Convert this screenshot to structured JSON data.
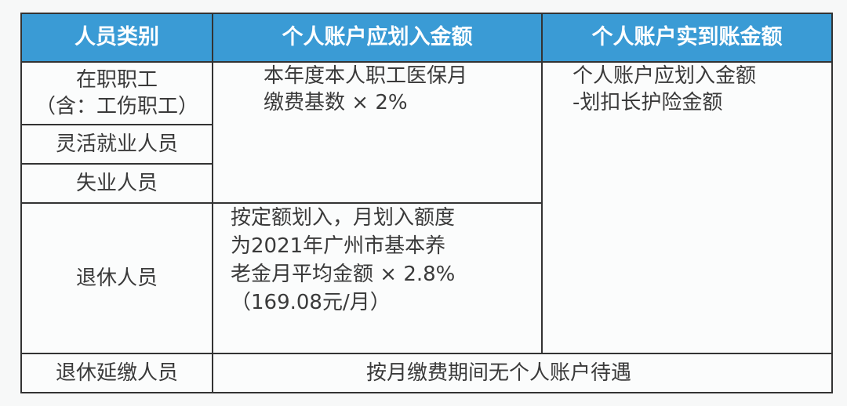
{
  "header": {
    "col1": "人员类别",
    "col2": "个人账户应划入金额",
    "col3": "个人账户实到账金额"
  },
  "rows": [
    {
      "category_line1": "在职职工",
      "category_line2": "（含：工伤职工）"
    },
    {
      "category": "灵活就业人员"
    },
    {
      "category": "失业人员"
    },
    {
      "category": "退休人员"
    },
    {
      "category": "退休延缴人员"
    }
  ],
  "amount_working_line1": "本年度本人职工医保月",
  "amount_working_line2": "缴费基数 × 2%",
  "amount_retired_line1": "按定额划入，月划入额度",
  "amount_retired_line2": "为2021年广州市基本养",
  "amount_retired_line3": "老金月平均金额 × 2.8%",
  "amount_retired_line4": "（169.08元/月）",
  "actual_line1": "个人账户应划入金额",
  "actual_line2": "-划扣长护险金额",
  "deferred_note": "按月缴费期间无个人账户待遇",
  "colors": {
    "header_bg": "#3a9bd5"
  }
}
